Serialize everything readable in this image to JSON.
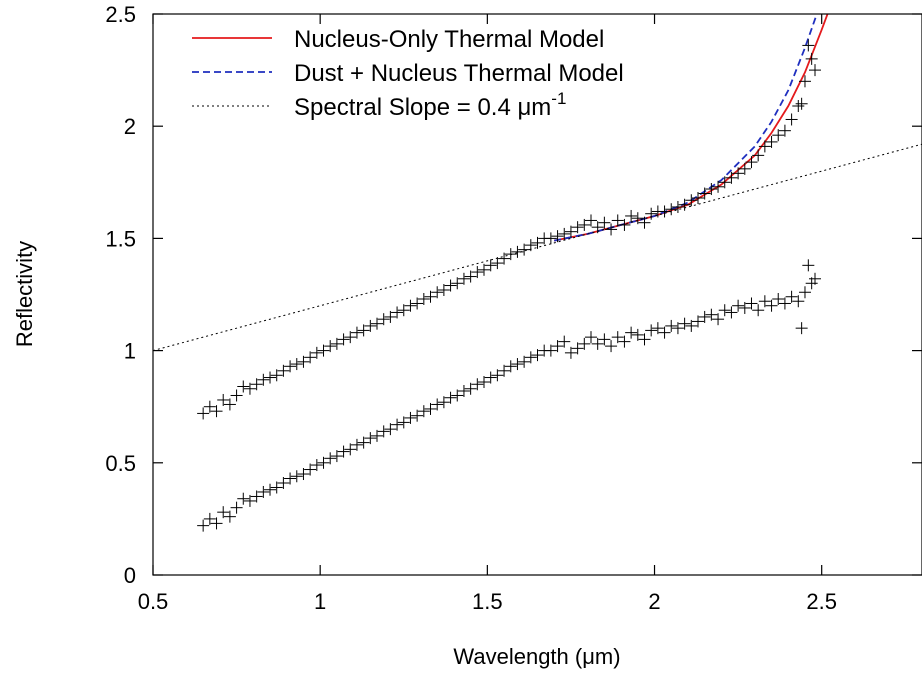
{
  "chart_data": {
    "type": "scatter",
    "xlabel": "Wavelength (μm)",
    "ylabel": "Reflectivity",
    "xlim": [
      0.5,
      2.8
    ],
    "ylim": [
      0,
      2.5
    ],
    "x_ticks": [
      0.5,
      1,
      1.5,
      2,
      2.5
    ],
    "y_ticks": [
      0,
      0.5,
      1,
      1.5,
      2,
      2.5
    ],
    "x_tick_labels": [
      "0.5",
      "1",
      "1.5",
      "2",
      "2.5"
    ],
    "y_tick_labels": [
      "0",
      "0.5",
      "1",
      "1.5",
      "2",
      "2.5"
    ],
    "grid": false,
    "legend_placement": "top-left",
    "legend": [
      {
        "name": "Nucleus-Only Thermal Model",
        "color": "#e41a1c",
        "style": "solid"
      },
      {
        "name": "Dust + Nucleus Thermal Model",
        "color": "#1f2fbf",
        "style": "dashed"
      },
      {
        "name": "Spectral Slope = 0.4 μm",
        "superscript": "-1",
        "color": "#000000",
        "style": "dotted"
      }
    ],
    "series": [
      {
        "name": "Nucleus-Only Thermal Model",
        "kind": "line",
        "x": [
          1.7,
          1.8,
          1.9,
          2.0,
          2.1,
          2.2,
          2.3,
          2.35,
          2.4,
          2.45,
          2.5,
          2.53
        ],
        "y": [
          1.49,
          1.52,
          1.56,
          1.6,
          1.65,
          1.74,
          1.87,
          1.97,
          2.09,
          2.24,
          2.43,
          2.55
        ]
      },
      {
        "name": "Dust + Nucleus Thermal Model",
        "kind": "line",
        "x": [
          1.7,
          1.8,
          1.9,
          2.0,
          2.1,
          2.2,
          2.3,
          2.35,
          2.4,
          2.45,
          2.49
        ],
        "y": [
          1.49,
          1.52,
          1.56,
          1.6,
          1.66,
          1.76,
          1.91,
          2.02,
          2.16,
          2.35,
          2.52
        ]
      },
      {
        "name": "Spectral Slope = 0.4 μm-1",
        "kind": "line",
        "x": [
          0.5,
          2.8
        ],
        "y": [
          1.0,
          1.92
        ]
      },
      {
        "name": "",
        "kind": "points",
        "x": [
          0.65,
          0.67,
          0.69,
          0.71,
          0.73,
          0.75,
          0.77,
          0.79,
          0.81,
          0.83,
          0.85,
          0.87,
          0.89,
          0.91,
          0.93,
          0.95,
          0.97,
          0.99,
          1.01,
          1.03,
          1.05,
          1.07,
          1.09,
          1.11,
          1.13,
          1.15,
          1.17,
          1.19,
          1.21,
          1.23,
          1.25,
          1.27,
          1.29,
          1.31,
          1.33,
          1.35,
          1.37,
          1.39,
          1.41,
          1.43,
          1.45,
          1.47,
          1.49,
          1.51,
          1.53,
          1.55,
          1.57,
          1.59,
          1.61,
          1.63,
          1.65,
          1.67,
          1.69,
          1.71,
          1.73,
          1.75,
          1.77,
          1.79,
          1.81,
          1.83,
          1.85,
          1.87,
          1.89,
          1.91,
          1.93,
          1.95,
          1.97,
          1.99,
          2.01,
          2.03,
          2.05,
          2.07,
          2.09,
          2.11,
          2.13,
          2.15,
          2.17,
          2.19,
          2.21,
          2.23,
          2.25,
          2.27,
          2.29,
          2.31,
          2.33,
          2.35,
          2.37,
          2.39,
          2.41,
          2.43,
          2.45,
          2.47,
          2.48,
          2.46,
          2.44
        ],
        "y": [
          0.72,
          0.75,
          0.73,
          0.78,
          0.76,
          0.8,
          0.84,
          0.83,
          0.85,
          0.87,
          0.88,
          0.89,
          0.91,
          0.93,
          0.94,
          0.95,
          0.97,
          0.99,
          1.0,
          1.02,
          1.03,
          1.05,
          1.06,
          1.08,
          1.09,
          1.11,
          1.12,
          1.14,
          1.15,
          1.17,
          1.18,
          1.2,
          1.21,
          1.23,
          1.24,
          1.26,
          1.27,
          1.29,
          1.3,
          1.32,
          1.33,
          1.35,
          1.36,
          1.38,
          1.39,
          1.41,
          1.43,
          1.44,
          1.45,
          1.47,
          1.48,
          1.5,
          1.5,
          1.51,
          1.52,
          1.53,
          1.55,
          1.56,
          1.58,
          1.55,
          1.57,
          1.54,
          1.58,
          1.56,
          1.6,
          1.59,
          1.57,
          1.61,
          1.62,
          1.62,
          1.63,
          1.64,
          1.65,
          1.67,
          1.68,
          1.7,
          1.72,
          1.73,
          1.75,
          1.77,
          1.79,
          1.81,
          1.84,
          1.87,
          1.91,
          1.93,
          1.96,
          1.98,
          2.03,
          2.09,
          2.2,
          2.3,
          2.25,
          2.36,
          2.1
        ]
      },
      {
        "name": "",
        "kind": "points",
        "x": [
          0.65,
          0.67,
          0.69,
          0.71,
          0.73,
          0.75,
          0.77,
          0.79,
          0.81,
          0.83,
          0.85,
          0.87,
          0.89,
          0.91,
          0.93,
          0.95,
          0.97,
          0.99,
          1.01,
          1.03,
          1.05,
          1.07,
          1.09,
          1.11,
          1.13,
          1.15,
          1.17,
          1.19,
          1.21,
          1.23,
          1.25,
          1.27,
          1.29,
          1.31,
          1.33,
          1.35,
          1.37,
          1.39,
          1.41,
          1.43,
          1.45,
          1.47,
          1.49,
          1.51,
          1.53,
          1.55,
          1.57,
          1.59,
          1.61,
          1.63,
          1.65,
          1.67,
          1.69,
          1.71,
          1.73,
          1.75,
          1.77,
          1.79,
          1.81,
          1.83,
          1.85,
          1.87,
          1.89,
          1.91,
          1.93,
          1.95,
          1.97,
          1.99,
          2.01,
          2.03,
          2.05,
          2.07,
          2.09,
          2.11,
          2.13,
          2.15,
          2.17,
          2.19,
          2.21,
          2.23,
          2.25,
          2.27,
          2.29,
          2.31,
          2.33,
          2.35,
          2.37,
          2.39,
          2.41,
          2.43,
          2.45,
          2.47,
          2.48,
          2.46,
          2.44
        ],
        "y": [
          0.22,
          0.25,
          0.23,
          0.28,
          0.26,
          0.3,
          0.34,
          0.33,
          0.35,
          0.37,
          0.38,
          0.39,
          0.41,
          0.43,
          0.44,
          0.45,
          0.47,
          0.49,
          0.5,
          0.52,
          0.53,
          0.55,
          0.56,
          0.58,
          0.59,
          0.61,
          0.62,
          0.64,
          0.65,
          0.67,
          0.68,
          0.7,
          0.71,
          0.73,
          0.74,
          0.76,
          0.77,
          0.79,
          0.8,
          0.82,
          0.83,
          0.85,
          0.86,
          0.88,
          0.89,
          0.91,
          0.93,
          0.94,
          0.95,
          0.97,
          0.98,
          1.0,
          1.0,
          1.02,
          1.04,
          0.99,
          1.01,
          1.03,
          1.06,
          1.03,
          1.05,
          1.02,
          1.06,
          1.04,
          1.08,
          1.07,
          1.05,
          1.09,
          1.1,
          1.08,
          1.11,
          1.1,
          1.12,
          1.11,
          1.13,
          1.15,
          1.16,
          1.14,
          1.18,
          1.17,
          1.2,
          1.19,
          1.21,
          1.18,
          1.22,
          1.2,
          1.23,
          1.21,
          1.24,
          1.22,
          1.26,
          1.3,
          1.32,
          1.38,
          1.1
        ]
      }
    ]
  }
}
